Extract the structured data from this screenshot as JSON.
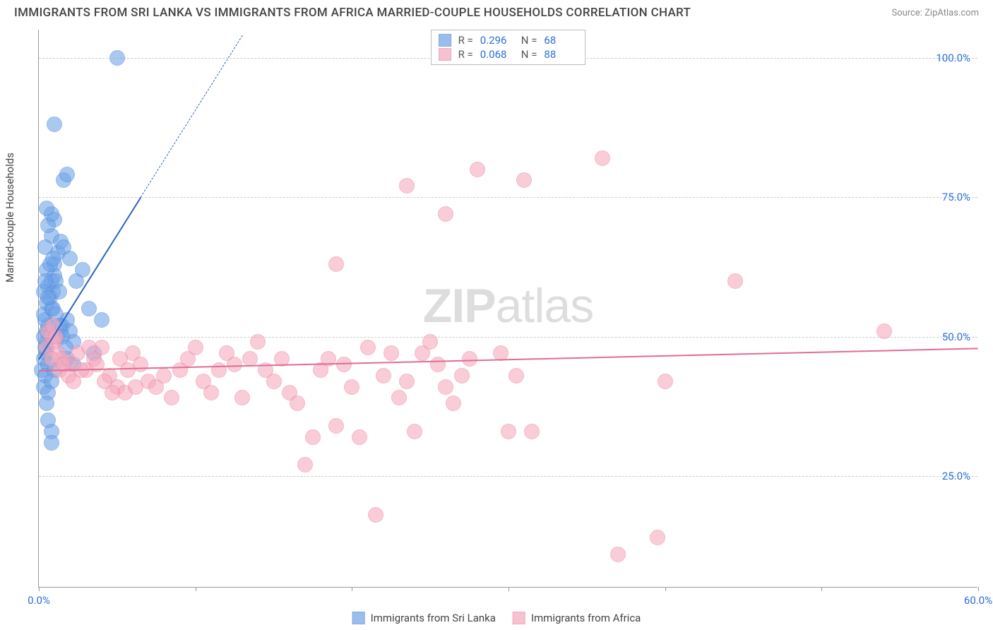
{
  "title": "IMMIGRANTS FROM SRI LANKA VS IMMIGRANTS FROM AFRICA MARRIED-COUPLE HOUSEHOLDS CORRELATION CHART",
  "source": "Source: ZipAtlas.com",
  "ylabel": "Married-couple Households",
  "watermark_a": "ZIP",
  "watermark_b": "atlas",
  "chart": {
    "type": "scatter",
    "background_color": "#ffffff",
    "grid_color": "#cccccc",
    "axis_color": "#999999",
    "text_color": "#444444",
    "tick_label_color": "#2b6fd6",
    "label_fontsize": 15,
    "title_fontsize": 17,
    "xlim": [
      0,
      60
    ],
    "ylim": [
      5,
      105
    ],
    "yticks": [
      25,
      50,
      75,
      100
    ],
    "ytick_labels": [
      "25.0%",
      "50.0%",
      "75.0%",
      "100.0%"
    ],
    "xtick_positions": [
      0,
      10,
      20,
      30,
      40,
      50,
      60
    ],
    "xtick_labels": [
      "0.0%",
      "",
      "",
      "",
      "",
      "",
      "60.0%"
    ],
    "marker_radius": 11,
    "marker_fill_opacity": 0.28,
    "marker_stroke_opacity": 0.9,
    "line_width": 2.5,
    "dash_pattern": "6,5"
  },
  "series": [
    {
      "name": "Immigrants from Sri Lanka",
      "color": "#6ea3e8",
      "stroke": "#4f86d6",
      "line_color": "#2d62c0",
      "r_label": "R = ",
      "r_value": "0.296",
      "n_label": "N = ",
      "n_value": "68",
      "trend": {
        "x1": 0,
        "y1": 46,
        "x2": 6.5,
        "y2": 75,
        "extend_x": 13,
        "extend_y": 104
      },
      "points": [
        [
          0.2,
          44
        ],
        [
          0.3,
          46
        ],
        [
          0.4,
          48
        ],
        [
          0.5,
          49
        ],
        [
          0.3,
          50
        ],
        [
          0.5,
          51
        ],
        [
          0.6,
          52
        ],
        [
          0.4,
          53
        ],
        [
          0.3,
          54
        ],
        [
          0.8,
          55
        ],
        [
          0.5,
          56
        ],
        [
          0.7,
          57
        ],
        [
          0.9,
          58
        ],
        [
          0.6,
          59
        ],
        [
          0.8,
          60
        ],
        [
          1.0,
          61
        ],
        [
          0.5,
          47
        ],
        [
          0.6,
          45
        ],
        [
          0.4,
          43
        ],
        [
          0.3,
          41
        ],
        [
          1.2,
          50
        ],
        [
          1.4,
          51
        ],
        [
          1.5,
          52
        ],
        [
          1.8,
          53
        ],
        [
          2.0,
          51
        ],
        [
          2.2,
          49
        ],
        [
          1.0,
          44
        ],
        [
          0.8,
          42
        ],
        [
          0.6,
          40
        ],
        [
          0.5,
          38
        ],
        [
          1.0,
          63
        ],
        [
          1.2,
          65
        ],
        [
          0.8,
          68
        ],
        [
          1.0,
          71
        ],
        [
          1.4,
          67
        ],
        [
          1.6,
          66
        ],
        [
          2.0,
          64
        ],
        [
          2.4,
          60
        ],
        [
          2.8,
          62
        ],
        [
          3.2,
          55
        ],
        [
          4.0,
          53
        ],
        [
          1.6,
          78
        ],
        [
          1.8,
          79
        ],
        [
          1.0,
          88
        ],
        [
          5.0,
          100
        ],
        [
          0.8,
          33
        ],
        [
          0.6,
          35
        ],
        [
          3.5,
          47
        ],
        [
          1.8,
          46
        ],
        [
          2.2,
          45
        ],
        [
          0.5,
          62
        ],
        [
          0.7,
          63
        ],
        [
          0.9,
          64
        ],
        [
          1.1,
          60
        ],
        [
          1.3,
          58
        ],
        [
          0.4,
          66
        ],
        [
          0.6,
          70
        ],
        [
          0.8,
          72
        ],
        [
          0.5,
          73
        ],
        [
          0.9,
          55
        ],
        [
          1.1,
          54
        ],
        [
          1.3,
          52
        ],
        [
          1.5,
          50
        ],
        [
          1.7,
          48
        ],
        [
          0.3,
          58
        ],
        [
          0.4,
          60
        ],
        [
          0.6,
          57
        ],
        [
          0.8,
          31
        ]
      ]
    },
    {
      "name": "Immigrants from Africa",
      "color": "#f5a9bd",
      "stroke": "#e887a3",
      "line_color": "#e36b95",
      "r_label": "R = ",
      "r_value": "0.068",
      "n_label": "N = ",
      "n_value": "88",
      "trend": {
        "x1": 0,
        "y1": 44,
        "x2": 60,
        "y2": 48
      },
      "points": [
        [
          0.5,
          48
        ],
        [
          0.8,
          50
        ],
        [
          1.0,
          49
        ],
        [
          1.2,
          47
        ],
        [
          1.5,
          46
        ],
        [
          0.6,
          51
        ],
        [
          0.9,
          52
        ],
        [
          1.1,
          50
        ],
        [
          2.0,
          45
        ],
        [
          2.5,
          47
        ],
        [
          3.0,
          44
        ],
        [
          3.5,
          46
        ],
        [
          4.0,
          48
        ],
        [
          4.5,
          43
        ],
        [
          5.0,
          41
        ],
        [
          5.5,
          40
        ],
        [
          6.0,
          47
        ],
        [
          6.5,
          45
        ],
        [
          7.0,
          42
        ],
        [
          7.5,
          41
        ],
        [
          8.0,
          43
        ],
        [
          8.5,
          39
        ],
        [
          9.0,
          44
        ],
        [
          9.5,
          46
        ],
        [
          10.0,
          48
        ],
        [
          10.5,
          42
        ],
        [
          11.0,
          40
        ],
        [
          11.5,
          44
        ],
        [
          12.0,
          47
        ],
        [
          12.5,
          45
        ],
        [
          13.0,
          39
        ],
        [
          13.5,
          46
        ],
        [
          14.0,
          49
        ],
        [
          14.5,
          44
        ],
        [
          15.0,
          42
        ],
        [
          15.5,
          46
        ],
        [
          16.0,
          40
        ],
        [
          16.5,
          38
        ],
        [
          17.0,
          27
        ],
        [
          17.5,
          32
        ],
        [
          18.0,
          44
        ],
        [
          18.5,
          46
        ],
        [
          19.0,
          34
        ],
        [
          19.5,
          45
        ],
        [
          20.0,
          41
        ],
        [
          20.5,
          32
        ],
        [
          21.0,
          48
        ],
        [
          21.5,
          18
        ],
        [
          22.0,
          43
        ],
        [
          22.5,
          47
        ],
        [
          23.0,
          39
        ],
        [
          23.5,
          42
        ],
        [
          24.0,
          33
        ],
        [
          24.5,
          47
        ],
        [
          25.0,
          49
        ],
        [
          25.5,
          45
        ],
        [
          26.0,
          41
        ],
        [
          26.5,
          38
        ],
        [
          27.0,
          43
        ],
        [
          27.5,
          46
        ],
        [
          19.0,
          63
        ],
        [
          26.0,
          72
        ],
        [
          23.5,
          77
        ],
        [
          28.0,
          80
        ],
        [
          29.5,
          47
        ],
        [
          30.0,
          33
        ],
        [
          30.5,
          43
        ],
        [
          31.0,
          78
        ],
        [
          31.5,
          33
        ],
        [
          36.0,
          82
        ],
        [
          37.0,
          11
        ],
        [
          39.5,
          14
        ],
        [
          40.0,
          42
        ],
        [
          44.5,
          60
        ],
        [
          54.0,
          51
        ],
        [
          0.8,
          46
        ],
        [
          1.3,
          44
        ],
        [
          1.6,
          45
        ],
        [
          1.9,
          43
        ],
        [
          2.2,
          42
        ],
        [
          2.7,
          44
        ],
        [
          3.2,
          48
        ],
        [
          3.7,
          45
        ],
        [
          4.2,
          42
        ],
        [
          4.7,
          40
        ],
        [
          5.2,
          46
        ],
        [
          5.7,
          44
        ],
        [
          6.2,
          41
        ]
      ]
    }
  ]
}
